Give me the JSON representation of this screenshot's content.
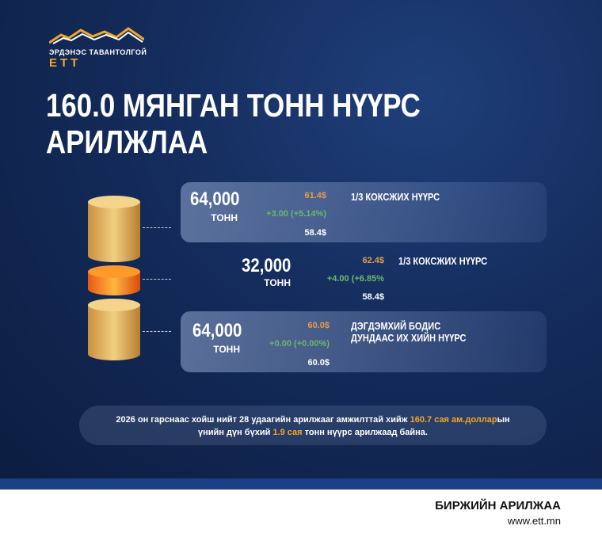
{
  "logo": {
    "text": "ЭРДЭНЭС ТАВАНТОЛГОЙ",
    "mark": "ETT"
  },
  "title": [
    "160.0 МЯНГАН ТОНН НҮҮРС",
    "АРИЛЖЛАА"
  ],
  "trades": [
    {
      "amount": "64,000",
      "unit": "ТОНН",
      "price": "61.4$",
      "change": "+3.00 (+5.14%)",
      "start_price": "58.4$",
      "name": [
        "1/3 КОКСЖИХ НҮҮРС"
      ]
    },
    {
      "amount": "32,000",
      "unit": "ТОНН",
      "price": "62.4$",
      "change": "+4.00 (+6.85%",
      "start_price": "58.4$",
      "name": [
        "1/3 КОКСЖИХ НҮҮРС"
      ]
    },
    {
      "amount": "64,000",
      "unit": "ТОНН",
      "price": "60.0$",
      "change": "+0.00 (+0.00%)",
      "start_price": "60.0$",
      "name": [
        "ДЭГДЭМХИЙ БОДИС",
        "ДУНДААС ИХ ХИЙН НҮҮРС"
      ]
    }
  ],
  "summary": {
    "part1": "2026 он гарснаас хойш нийт 28 удаагийн арилжааг амжилттай хийж ",
    "hl1": "160.7 сая ам.доллар",
    "part2": "ын",
    "part3": "үнийн дүн бүхий ",
    "hl2": "1.9 сая",
    "part4": " тонн нүүрс арилжаад байна."
  },
  "footer": {
    "title": "БИРЖИЙН АРИЛЖАА",
    "url": "www.ett.mn"
  },
  "colors": {
    "accent": "#f0a72a",
    "bg": "#142c5c",
    "up": "#6bb86b"
  }
}
